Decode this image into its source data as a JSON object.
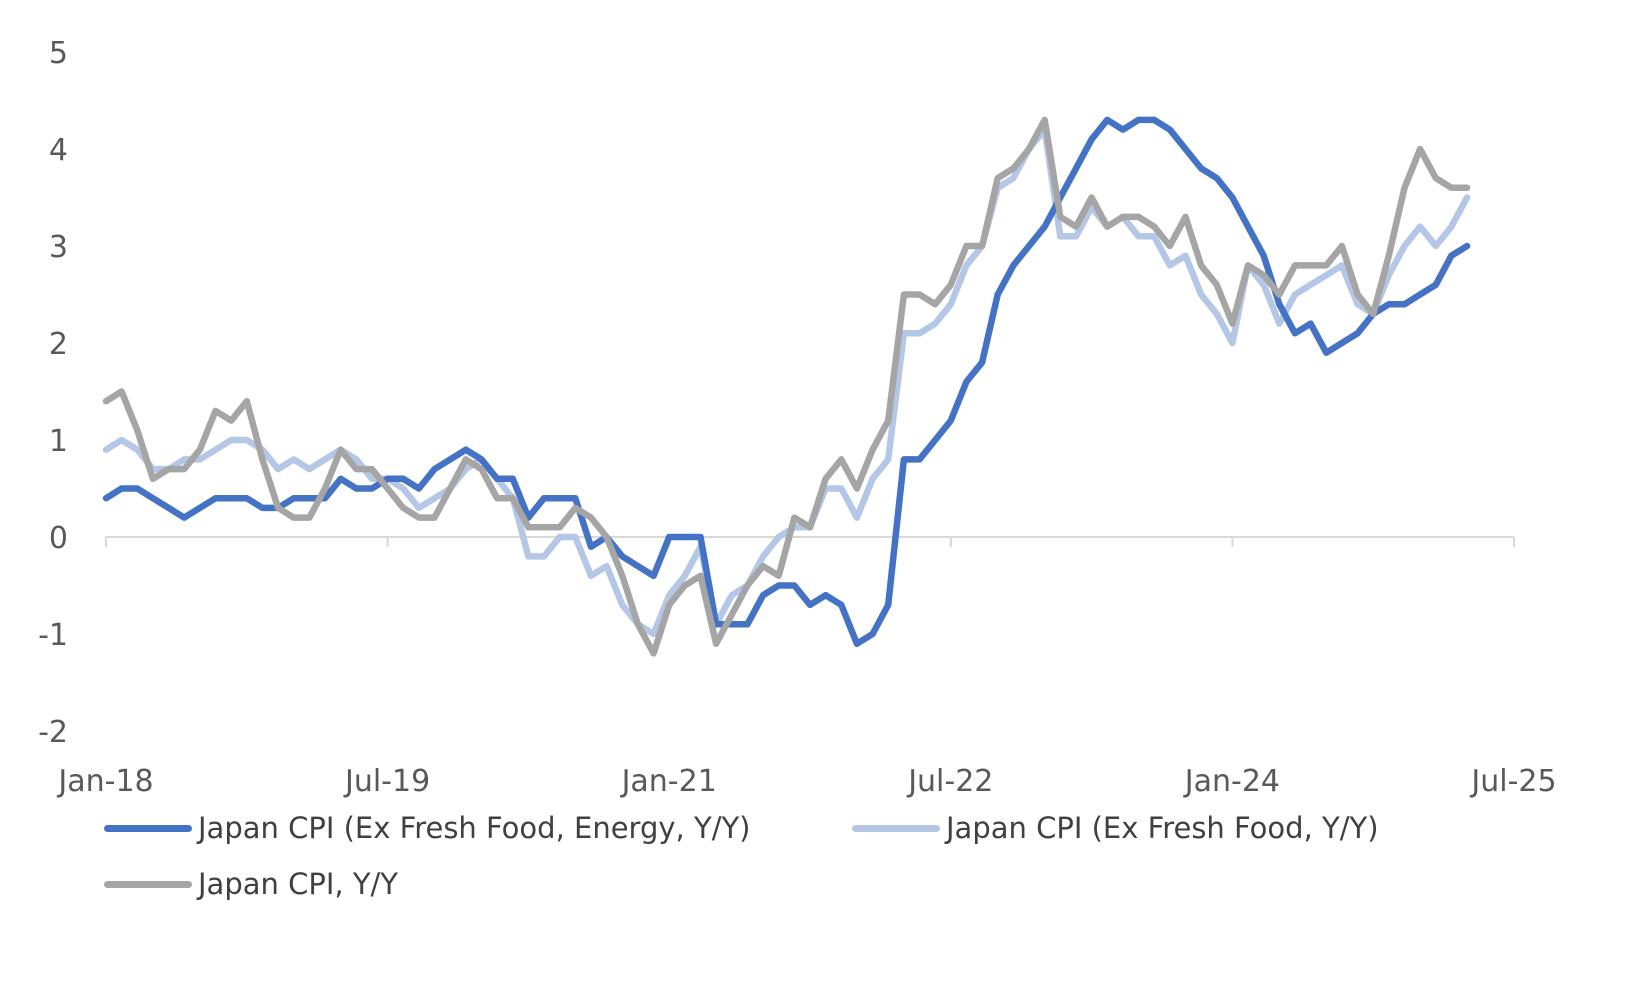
{
  "chart_data": {
    "type": "line",
    "title": "",
    "xlabel": "",
    "ylabel": "",
    "ylim": [
      -2,
      5
    ],
    "yticks": [
      "5",
      "4",
      "3",
      "2",
      "1",
      "0",
      "-1",
      "-2"
    ],
    "xticks": [
      "Jan-18",
      "Jul-19",
      "Jan-21",
      "Jul-22",
      "Jan-24",
      "Jul-25"
    ],
    "x_start": "Jan-18",
    "x_end": "Jul-25",
    "frequency": "monthly",
    "grid": false,
    "legend": "bottom",
    "series": [
      {
        "name": "Japan CPI (Ex Fresh Food, Y/Y)",
        "color": "#b4c7e7",
        "values": [
          0.9,
          1.0,
          0.9,
          0.7,
          0.7,
          0.8,
          0.8,
          0.9,
          1.0,
          1.0,
          0.9,
          0.7,
          0.8,
          0.7,
          0.8,
          0.9,
          0.8,
          0.6,
          0.6,
          0.5,
          0.3,
          0.4,
          0.5,
          0.7,
          0.8,
          0.6,
          0.4,
          -0.2,
          -0.2,
          0.0,
          0.0,
          -0.4,
          -0.3,
          -0.7,
          -0.9,
          -1.0,
          -0.6,
          -0.4,
          -0.1,
          -0.9,
          -0.6,
          -0.5,
          -0.2,
          0.0,
          0.1,
          0.1,
          0.5,
          0.5,
          0.2,
          0.6,
          0.8,
          2.1,
          2.1,
          2.2,
          2.4,
          2.8,
          3.0,
          3.6,
          3.7,
          4.0,
          4.2,
          3.1,
          3.1,
          3.4,
          3.2,
          3.3,
          3.1,
          3.1,
          2.8,
          2.9,
          2.5,
          2.3,
          2.0,
          2.8,
          2.6,
          2.2,
          2.5,
          2.6,
          2.7,
          2.8,
          2.4,
          2.3,
          2.7,
          3.0,
          3.2,
          3.0,
          3.2,
          3.5
        ]
      },
      {
        "name": "Japan CPI (Ex Fresh Food, Energy, Y/Y)",
        "color": "#4472c4",
        "values": [
          0.4,
          0.5,
          0.5,
          0.4,
          0.3,
          0.2,
          0.3,
          0.4,
          0.4,
          0.4,
          0.3,
          0.3,
          0.4,
          0.4,
          0.4,
          0.6,
          0.5,
          0.5,
          0.6,
          0.6,
          0.5,
          0.7,
          0.8,
          0.9,
          0.8,
          0.6,
          0.6,
          0.2,
          0.4,
          0.4,
          0.4,
          -0.1,
          0.0,
          -0.2,
          -0.3,
          -0.4,
          0.0,
          0.0,
          0.0,
          -0.9,
          -0.9,
          -0.9,
          -0.6,
          -0.5,
          -0.5,
          -0.7,
          -0.6,
          -0.7,
          -1.1,
          -1.0,
          -0.7,
          0.8,
          0.8,
          1.0,
          1.2,
          1.6,
          1.8,
          2.5,
          2.8,
          3.0,
          3.2,
          3.5,
          3.8,
          4.1,
          4.3,
          4.2,
          4.3,
          4.3,
          4.2,
          4.0,
          3.8,
          3.7,
          3.5,
          3.2,
          2.9,
          2.4,
          2.1,
          2.2,
          1.9,
          2.0,
          2.1,
          2.3,
          2.4,
          2.4,
          2.5,
          2.6,
          2.9,
          3.0
        ]
      },
      {
        "name": "Japan CPI, Y/Y",
        "color": "#a5a5a5",
        "values": [
          1.4,
          1.5,
          1.1,
          0.6,
          0.7,
          0.7,
          0.9,
          1.3,
          1.2,
          1.4,
          0.8,
          0.3,
          0.2,
          0.2,
          0.5,
          0.9,
          0.7,
          0.7,
          0.5,
          0.3,
          0.2,
          0.2,
          0.5,
          0.8,
          0.7,
          0.4,
          0.4,
          0.1,
          0.1,
          0.1,
          0.3,
          0.2,
          0.0,
          -0.4,
          -0.9,
          -1.2,
          -0.7,
          -0.5,
          -0.4,
          -1.1,
          -0.8,
          -0.5,
          -0.3,
          -0.4,
          0.2,
          0.1,
          0.6,
          0.8,
          0.5,
          0.9,
          1.2,
          2.5,
          2.5,
          2.4,
          2.6,
          3.0,
          3.0,
          3.7,
          3.8,
          4.0,
          4.3,
          3.3,
          3.2,
          3.5,
          3.2,
          3.3,
          3.3,
          3.2,
          3.0,
          3.3,
          2.8,
          2.6,
          2.2,
          2.8,
          2.7,
          2.5,
          2.8,
          2.8,
          2.8,
          3.0,
          2.5,
          2.3,
          2.9,
          3.6,
          4.0,
          3.7,
          3.6,
          3.6
        ]
      }
    ],
    "legend_entries": [
      "Japan CPI (Ex Fresh Food, Energy, Y/Y)",
      "Japan CPI (Ex Fresh Food, Y/Y)",
      "Japan CPI, Y/Y"
    ]
  }
}
